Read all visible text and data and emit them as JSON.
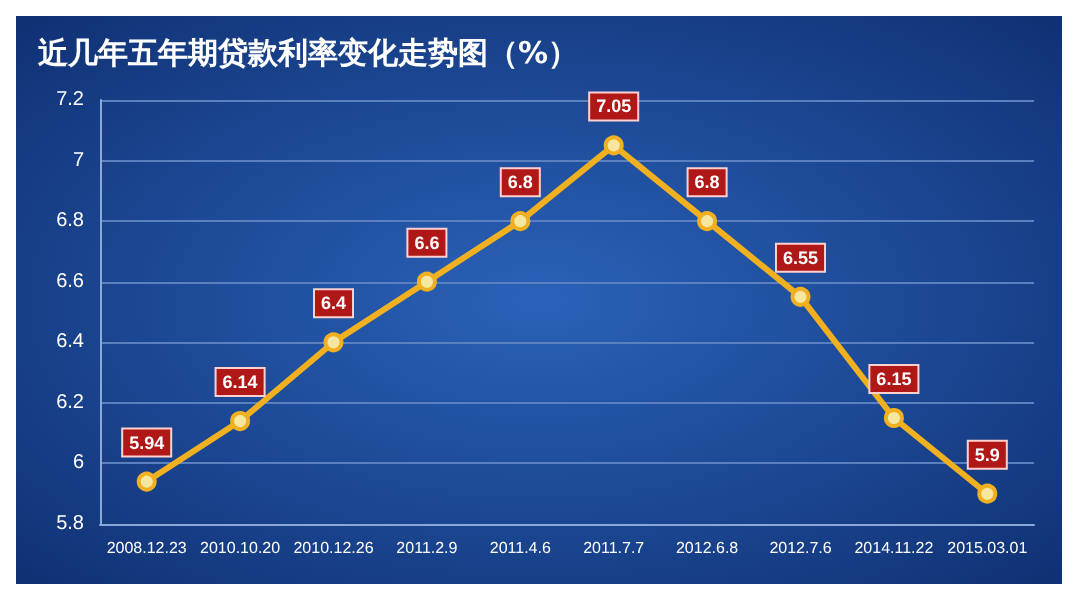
{
  "chart_data": {
    "type": "line",
    "title": "近几年五年期贷款利率变化走势图（%）",
    "categories": [
      "2008.12.23",
      "2010.10.20",
      "2010.12.26",
      "2011.2.9",
      "2011.4.6",
      "2011.7.7",
      "2012.6.8",
      "2012.7.6",
      "2014.11.22",
      "2015.03.01"
    ],
    "series": [
      {
        "color": "#f0b020",
        "values": [
          5.94,
          6.14,
          6.4,
          6.6,
          6.8,
          7.05,
          6.8,
          6.55,
          6.15,
          5.9
        ]
      }
    ],
    "ylim": [
      5.8,
      7.2
    ],
    "yticks": [
      5.8,
      6,
      6.2,
      6.4,
      6.6,
      6.8,
      7,
      7.2
    ],
    "grid": "y",
    "data_labels": true,
    "marker": "circle",
    "line_style": "solid"
  }
}
